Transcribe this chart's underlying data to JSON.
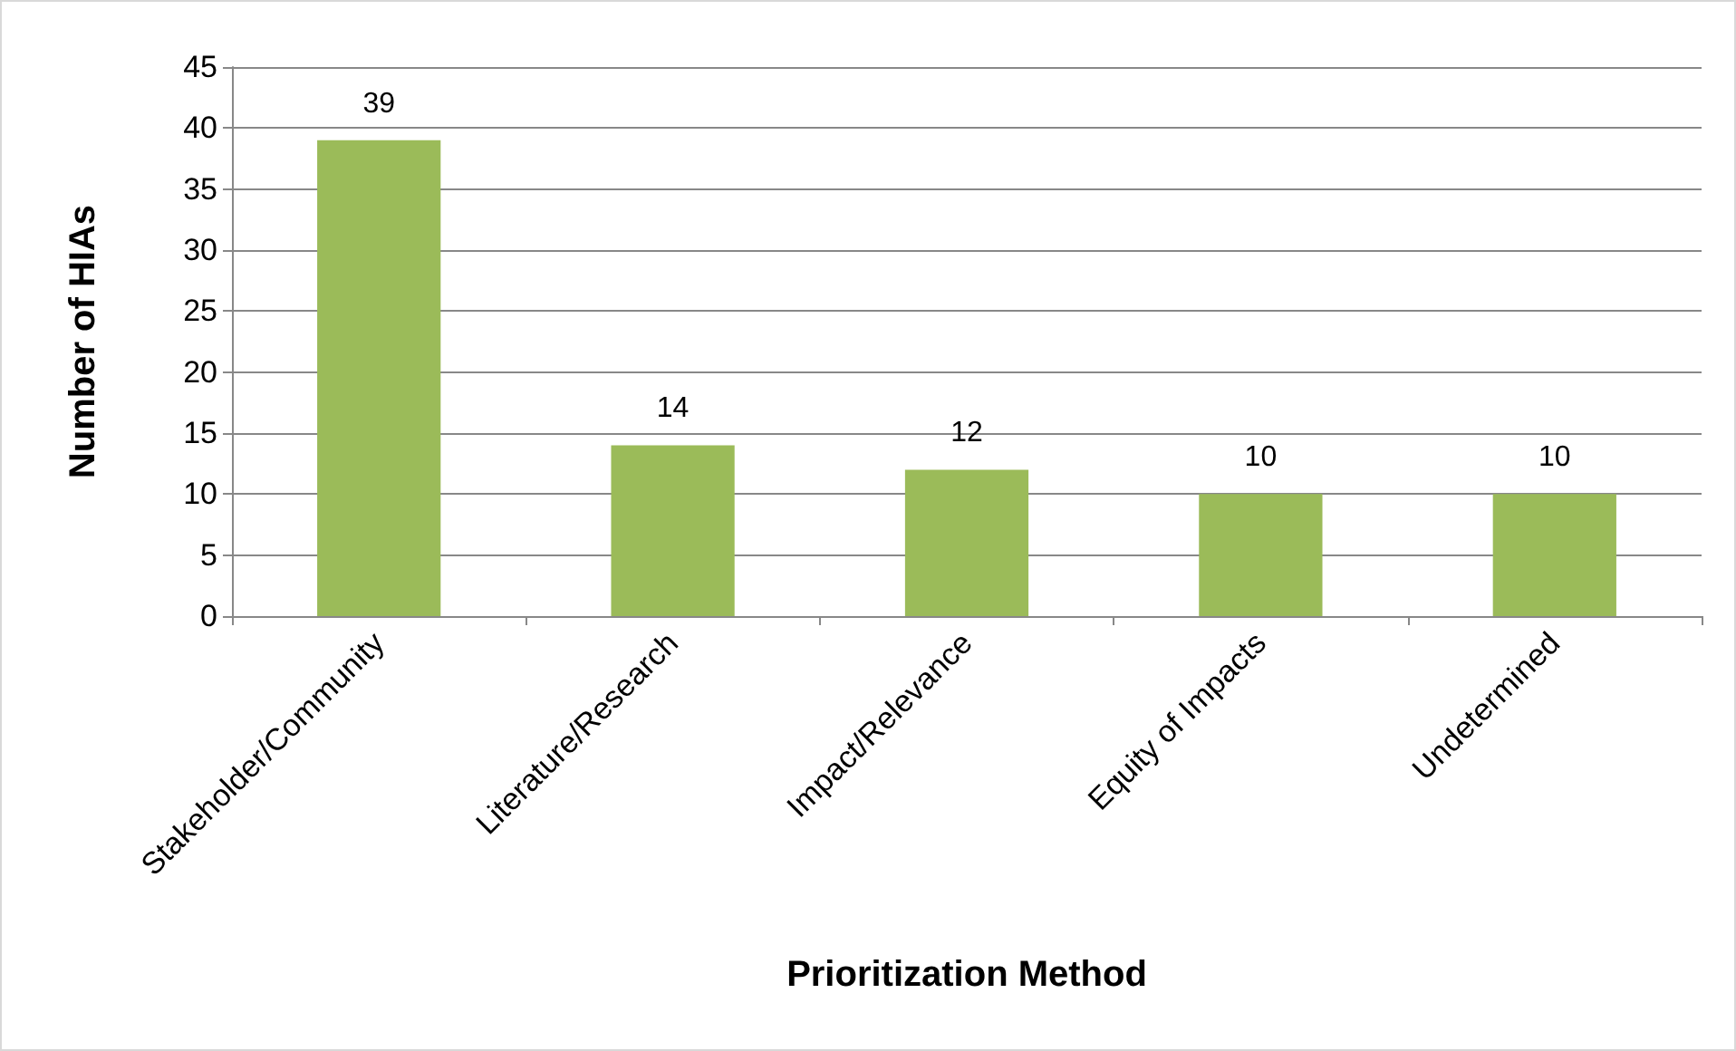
{
  "chart_data": {
    "type": "bar",
    "xlabel": "Prioritization Method",
    "ylabel": "Number of HIAs",
    "categories": [
      "Stakeholder/Community",
      "Literature/Research",
      "Impact/Relevance",
      "Equity of Impacts",
      "Undetermined"
    ],
    "values": [
      39,
      14,
      12,
      10,
      10
    ],
    "color": "#9bbb59",
    "ylim": [
      0,
      45
    ],
    "yticks": [
      0,
      5,
      10,
      15,
      20,
      25,
      30,
      35,
      40,
      45
    ],
    "grid": "y",
    "data_labels": true
  }
}
